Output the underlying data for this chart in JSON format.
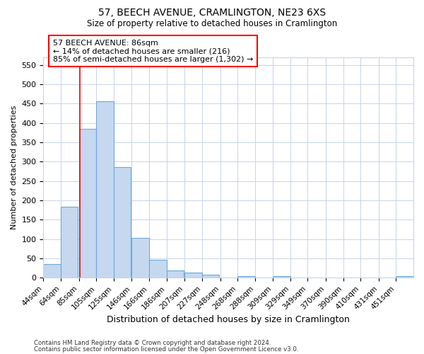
{
  "title_line1": "57, BEECH AVENUE, CRAMLINGTON, NE23 6XS",
  "title_line2": "Size of property relative to detached houses in Cramlington",
  "xlabel": "Distribution of detached houses by size in Cramlington",
  "ylabel": "Number of detached properties",
  "footnote_line1": "Contains HM Land Registry data © Crown copyright and database right 2024.",
  "footnote_line2": "Contains public sector information licensed under the Open Government Licence v3.0.",
  "bar_color": "#c5d8f0",
  "bar_edge_color": "#6fa8d8",
  "red_line_x": 86,
  "annotation_title": "57 BEECH AVENUE: 86sqm",
  "annotation_line1": "← 14% of detached houses are smaller (216)",
  "annotation_line2": "85% of semi-detached houses are larger (1,302) →",
  "categories": [
    "44sqm",
    "64sqm",
    "85sqm",
    "105sqm",
    "125sqm",
    "146sqm",
    "166sqm",
    "186sqm",
    "207sqm",
    "227sqm",
    "248sqm",
    "268sqm",
    "288sqm",
    "309sqm",
    "329sqm",
    "349sqm",
    "370sqm",
    "390sqm",
    "410sqm",
    "431sqm",
    "451sqm"
  ],
  "bin_edges": [
    44,
    64,
    85,
    105,
    125,
    146,
    166,
    186,
    207,
    227,
    248,
    268,
    288,
    309,
    329,
    349,
    370,
    390,
    410,
    431,
    451
  ],
  "bin_width": 20,
  "values": [
    35,
    184,
    385,
    456,
    286,
    103,
    47,
    19,
    13,
    8,
    0,
    4,
    0,
    4,
    0,
    0,
    0,
    0,
    0,
    0,
    4
  ],
  "ylim": [
    0,
    570
  ],
  "yticks": [
    0,
    50,
    100,
    150,
    200,
    250,
    300,
    350,
    400,
    450,
    500,
    550
  ],
  "background_color": "#ffffff",
  "grid_color": "#c8d4e8"
}
